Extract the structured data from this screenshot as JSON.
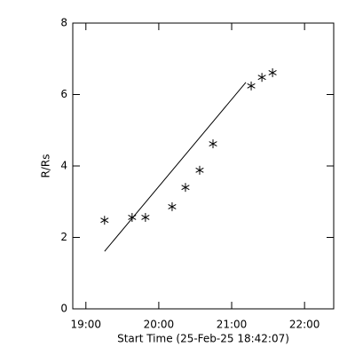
{
  "chart_data": {
    "type": "scatter",
    "xlabel": "Start Time (25-Feb-25 18:42:07)",
    "ylabel": "R/Rs",
    "xlim": [
      18.82,
      22.4
    ],
    "ylim": [
      0,
      8
    ],
    "xticks": [
      {
        "value": 19,
        "label": "19:00"
      },
      {
        "value": 20,
        "label": "20:00"
      },
      {
        "value": 21,
        "label": "21:00"
      },
      {
        "value": 22,
        "label": "22:00"
      }
    ],
    "yticks": [
      0,
      2,
      4,
      6,
      8
    ],
    "series": [
      {
        "color": "#000000",
        "marker": "asterisk",
        "x": [
          19.256,
          19.634,
          19.817,
          20.183,
          20.366,
          20.561,
          20.744,
          21.268,
          21.415,
          21.561
        ],
        "values": [
          2.48,
          2.56,
          2.56,
          2.86,
          3.4,
          3.88,
          4.62,
          6.24,
          6.48,
          6.61
        ]
      },
      {
        "color": "#000000",
        "marker": "line",
        "x": [
          19.256,
          21.195
        ],
        "values": [
          1.61,
          6.34
        ]
      }
    ]
  }
}
